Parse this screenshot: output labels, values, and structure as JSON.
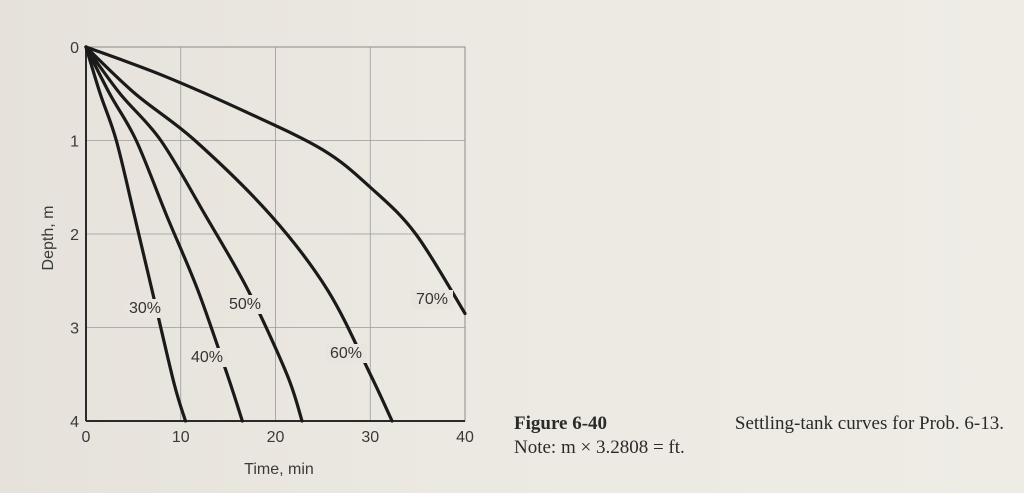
{
  "chart_data": {
    "type": "line",
    "title": "",
    "xlabel": "Time, min",
    "ylabel": "Depth, m",
    "xlim": [
      0,
      40
    ],
    "ylim": [
      4,
      0
    ],
    "y_inverted": true,
    "grid": true,
    "x_ticks": [
      "0",
      "10",
      "20",
      "30",
      "40"
    ],
    "y_ticks": [
      "0",
      "1",
      "2",
      "3",
      "4"
    ],
    "series": [
      {
        "name": "30%",
        "x": [
          0,
          1.5,
          3.2,
          5.1,
          7.2,
          9.3,
          10.5
        ],
        "y": [
          0,
          0.5,
          1.0,
          1.8,
          2.7,
          3.6,
          4.0
        ]
      },
      {
        "name": "40%",
        "x": [
          0,
          2.5,
          5.3,
          8.5,
          11.8,
          14.9,
          16.5
        ],
        "y": [
          0,
          0.5,
          1.0,
          1.8,
          2.6,
          3.5,
          4.0
        ]
      },
      {
        "name": "50%",
        "x": [
          0,
          3.6,
          7.9,
          12.6,
          17.1,
          21.2,
          22.8
        ],
        "y": [
          0,
          0.5,
          1.0,
          1.8,
          2.6,
          3.5,
          4.0
        ]
      },
      {
        "name": "60%",
        "x": [
          0,
          5.2,
          11.5,
          19.5,
          25.5,
          30.0,
          32.3
        ],
        "y": [
          0,
          0.5,
          1.0,
          1.8,
          2.6,
          3.5,
          4.0
        ]
      },
      {
        "name": "70%",
        "x": [
          0,
          8.0,
          17.0,
          25.0,
          30.0,
          34.8,
          40.0
        ],
        "y": [
          0,
          0.3,
          0.7,
          1.1,
          1.5,
          2.0,
          2.85
        ]
      }
    ],
    "curve_labels": [
      "30%",
      "40%",
      "50%",
      "60%",
      "70%"
    ]
  },
  "caption": {
    "figure_label": "Figure 6-40",
    "text": "Settling-tank curves for Prob. 6-13.",
    "note": "Note: m × 3.2808 = ft."
  }
}
